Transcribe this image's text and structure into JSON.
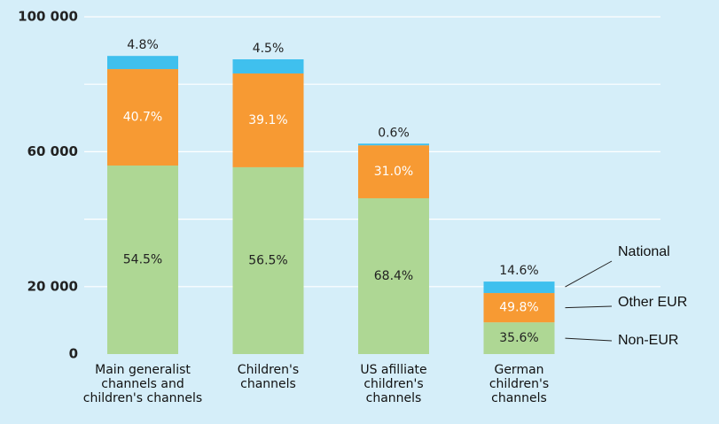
{
  "chart_data": {
    "type": "stacked_bar",
    "categories": [
      [
        "Main generalist",
        "channels and",
        "children's channels"
      ],
      [
        "Children's",
        "channels"
      ],
      [
        "US afilliate",
        "children's",
        "channels"
      ],
      [
        "German",
        "children's",
        "channels"
      ]
    ],
    "series": [
      {
        "name": "Non-EUR",
        "color": "#aed794",
        "label_color": "#222222",
        "values": [
          55900,
          55400,
          46200,
          9400
        ],
        "value_labels": [
          "54.5%",
          "56.5%",
          "68.4%",
          "35.6%"
        ]
      },
      {
        "name": "Other EUR",
        "color": "#f79a33",
        "label_color": "#ffffff",
        "values": [
          28600,
          27800,
          15700,
          8700
        ],
        "value_labels": [
          "40.7%",
          "39.1%",
          "31.0%",
          "49.8%"
        ]
      },
      {
        "name": "National",
        "color": "#3fc0ee",
        "label_color": "#222222",
        "values": [
          3900,
          4200,
          500,
          3400
        ],
        "value_labels": [
          "4.8%",
          "4.5%",
          "0.6%",
          "14.6%"
        ]
      }
    ],
    "ylim": [
      0,
      100000
    ],
    "yticks": [
      {
        "value": 0,
        "label": "0"
      },
      {
        "value": 20000,
        "label": "20 000"
      },
      {
        "value": 60000,
        "label": "60 000"
      },
      {
        "value": 100000,
        "label": "100 000"
      }
    ],
    "ygrid": [
      20000,
      40000,
      60000,
      80000,
      100000
    ]
  }
}
